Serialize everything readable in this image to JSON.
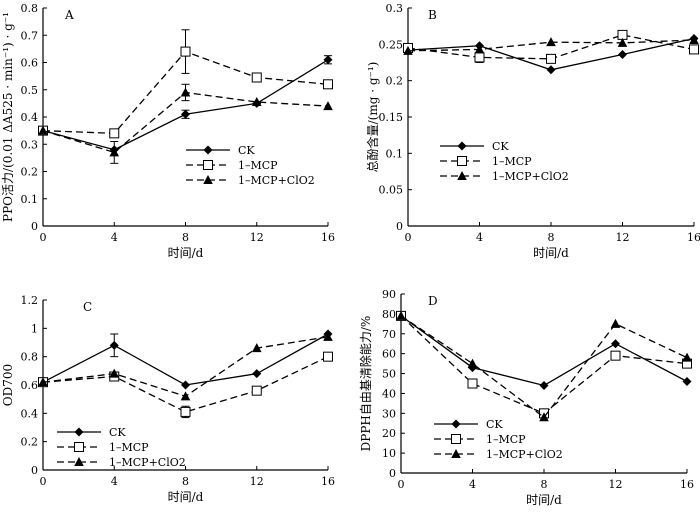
{
  "chart_data": [
    {
      "panel": "A",
      "type": "line",
      "ylabel": "PPO活力/(0.01 ΔA525 · min⁻¹) · g⁻¹",
      "xlabel": "时间/d",
      "x": [
        0,
        4,
        8,
        12,
        16
      ],
      "xlim": [
        0,
        16
      ],
      "xticks": [
        0,
        4,
        8,
        12,
        16
      ],
      "ylim": [
        0,
        0.8
      ],
      "yticks": [
        0,
        0.1,
        0.2,
        0.3,
        0.4,
        0.5,
        0.6,
        0.7,
        0.8
      ],
      "ytick_labels": [
        "0",
        "0.1",
        "0.2",
        "0.3",
        "0.4",
        "0.5",
        "0.6",
        "0.7",
        "0.8"
      ],
      "legend": "center-right",
      "series": [
        {
          "name": "CK",
          "values": [
            0.35,
            0.28,
            0.41,
            0.45,
            0.61
          ],
          "errors": [
            0,
            0,
            0.015,
            0,
            0.015
          ],
          "marker": "diamond",
          "dash": "solid"
        },
        {
          "name": "1–MCP",
          "values": [
            0.35,
            0.34,
            0.64,
            0.545,
            0.52
          ],
          "errors": [
            0,
            0,
            0.08,
            0,
            0
          ],
          "marker": "square-open",
          "dash": "dashed"
        },
        {
          "name": "1–MCP+ClO2",
          "values": [
            0.35,
            0.27,
            0.49,
            0.455,
            0.44
          ],
          "errors": [
            0,
            0.04,
            0.03,
            0,
            0
          ],
          "marker": "triangle",
          "dash": "dashed"
        }
      ]
    },
    {
      "panel": "B",
      "type": "line",
      "ylabel": "总酚含量/(mg · g⁻¹)",
      "xlabel": "时间/d",
      "x": [
        0,
        4,
        8,
        12,
        16
      ],
      "xlim": [
        0,
        16
      ],
      "xticks": [
        0,
        4,
        8,
        12,
        16
      ],
      "ylim": [
        0,
        0.3
      ],
      "yticks": [
        0,
        0.05,
        0.1,
        0.15,
        0.2,
        0.25,
        0.3
      ],
      "ytick_labels": [
        "0",
        "0.05",
        "0.1",
        "0.15",
        "0.2",
        "0.25",
        "0.3"
      ],
      "legend": "center-right",
      "series": [
        {
          "name": "CK",
          "values": [
            0.242,
            0.248,
            0.215,
            0.236,
            0.258
          ],
          "errors": [
            0,
            0,
            0,
            0,
            0
          ],
          "marker": "diamond",
          "dash": "solid"
        },
        {
          "name": "1–MCP",
          "values": [
            0.245,
            0.232,
            0.23,
            0.263,
            0.243
          ],
          "errors": [
            0,
            0.007,
            0,
            0,
            0
          ],
          "marker": "square-open",
          "dash": "dashed"
        },
        {
          "name": "1–MCP+ClO2",
          "values": [
            0.241,
            0.243,
            0.253,
            0.252,
            0.256
          ],
          "errors": [
            0,
            0,
            0,
            0,
            0
          ],
          "marker": "triangle",
          "dash": "dashed"
        }
      ]
    },
    {
      "panel": "C",
      "type": "line",
      "ylabel": "OD700",
      "xlabel": "时间/d",
      "x": [
        0,
        4,
        8,
        12,
        16
      ],
      "xlim": [
        0,
        16
      ],
      "xticks": [
        0,
        4,
        8,
        12,
        16
      ],
      "ylim": [
        0,
        1.2
      ],
      "yticks": [
        0,
        0.2,
        0.4,
        0.6,
        0.8,
        1.0,
        1.2
      ],
      "ytick_labels": [
        "0",
        "0.2",
        "0.4",
        "0.6",
        "0.8",
        "1",
        "1.2"
      ],
      "legend": "bottom-left",
      "series": [
        {
          "name": "CK",
          "values": [
            0.62,
            0.88,
            0.6,
            0.68,
            0.96
          ],
          "errors": [
            0,
            0.08,
            0,
            0,
            0
          ],
          "marker": "diamond",
          "dash": "solid"
        },
        {
          "name": "1–MCP",
          "values": [
            0.62,
            0.66,
            0.41,
            0.56,
            0.8
          ],
          "errors": [
            0,
            0.03,
            0.04,
            0,
            0
          ],
          "marker": "square-open",
          "dash": "dashed"
        },
        {
          "name": "1–MCP+ClO2",
          "values": [
            0.62,
            0.68,
            0.52,
            0.86,
            0.94
          ],
          "errors": [
            0,
            0,
            0,
            0,
            0
          ],
          "marker": "triangle",
          "dash": "dashed"
        }
      ]
    },
    {
      "panel": "D",
      "type": "line",
      "ylabel": "DPPH自由基清除能力/%",
      "xlabel": "时间/d",
      "x": [
        0,
        4,
        8,
        12,
        16
      ],
      "xlim": [
        0,
        16
      ],
      "xticks": [
        0,
        4,
        8,
        12,
        16
      ],
      "ylim": [
        0,
        90
      ],
      "yticks": [
        0,
        10,
        20,
        30,
        40,
        50,
        60,
        70,
        80,
        90
      ],
      "ytick_labels": [
        "0",
        "10",
        "20",
        "30",
        "40",
        "50",
        "60",
        "70",
        "80",
        "90"
      ],
      "legend": "bottom-left",
      "series": [
        {
          "name": "CK",
          "values": [
            79,
            53,
            44,
            65,
            46
          ],
          "errors": [
            0,
            0,
            0,
            0,
            0
          ],
          "marker": "diamond",
          "dash": "solid"
        },
        {
          "name": "1–MCP",
          "values": [
            79,
            45,
            30,
            59,
            55
          ],
          "errors": [
            0,
            0,
            0,
            0,
            0
          ],
          "marker": "square-open",
          "dash": "dashed"
        },
        {
          "name": "1–MCP+ClO2",
          "values": [
            79,
            55,
            28,
            75,
            58
          ],
          "errors": [
            0,
            0,
            0,
            0,
            0
          ],
          "marker": "triangle",
          "dash": "dashed"
        }
      ]
    }
  ]
}
